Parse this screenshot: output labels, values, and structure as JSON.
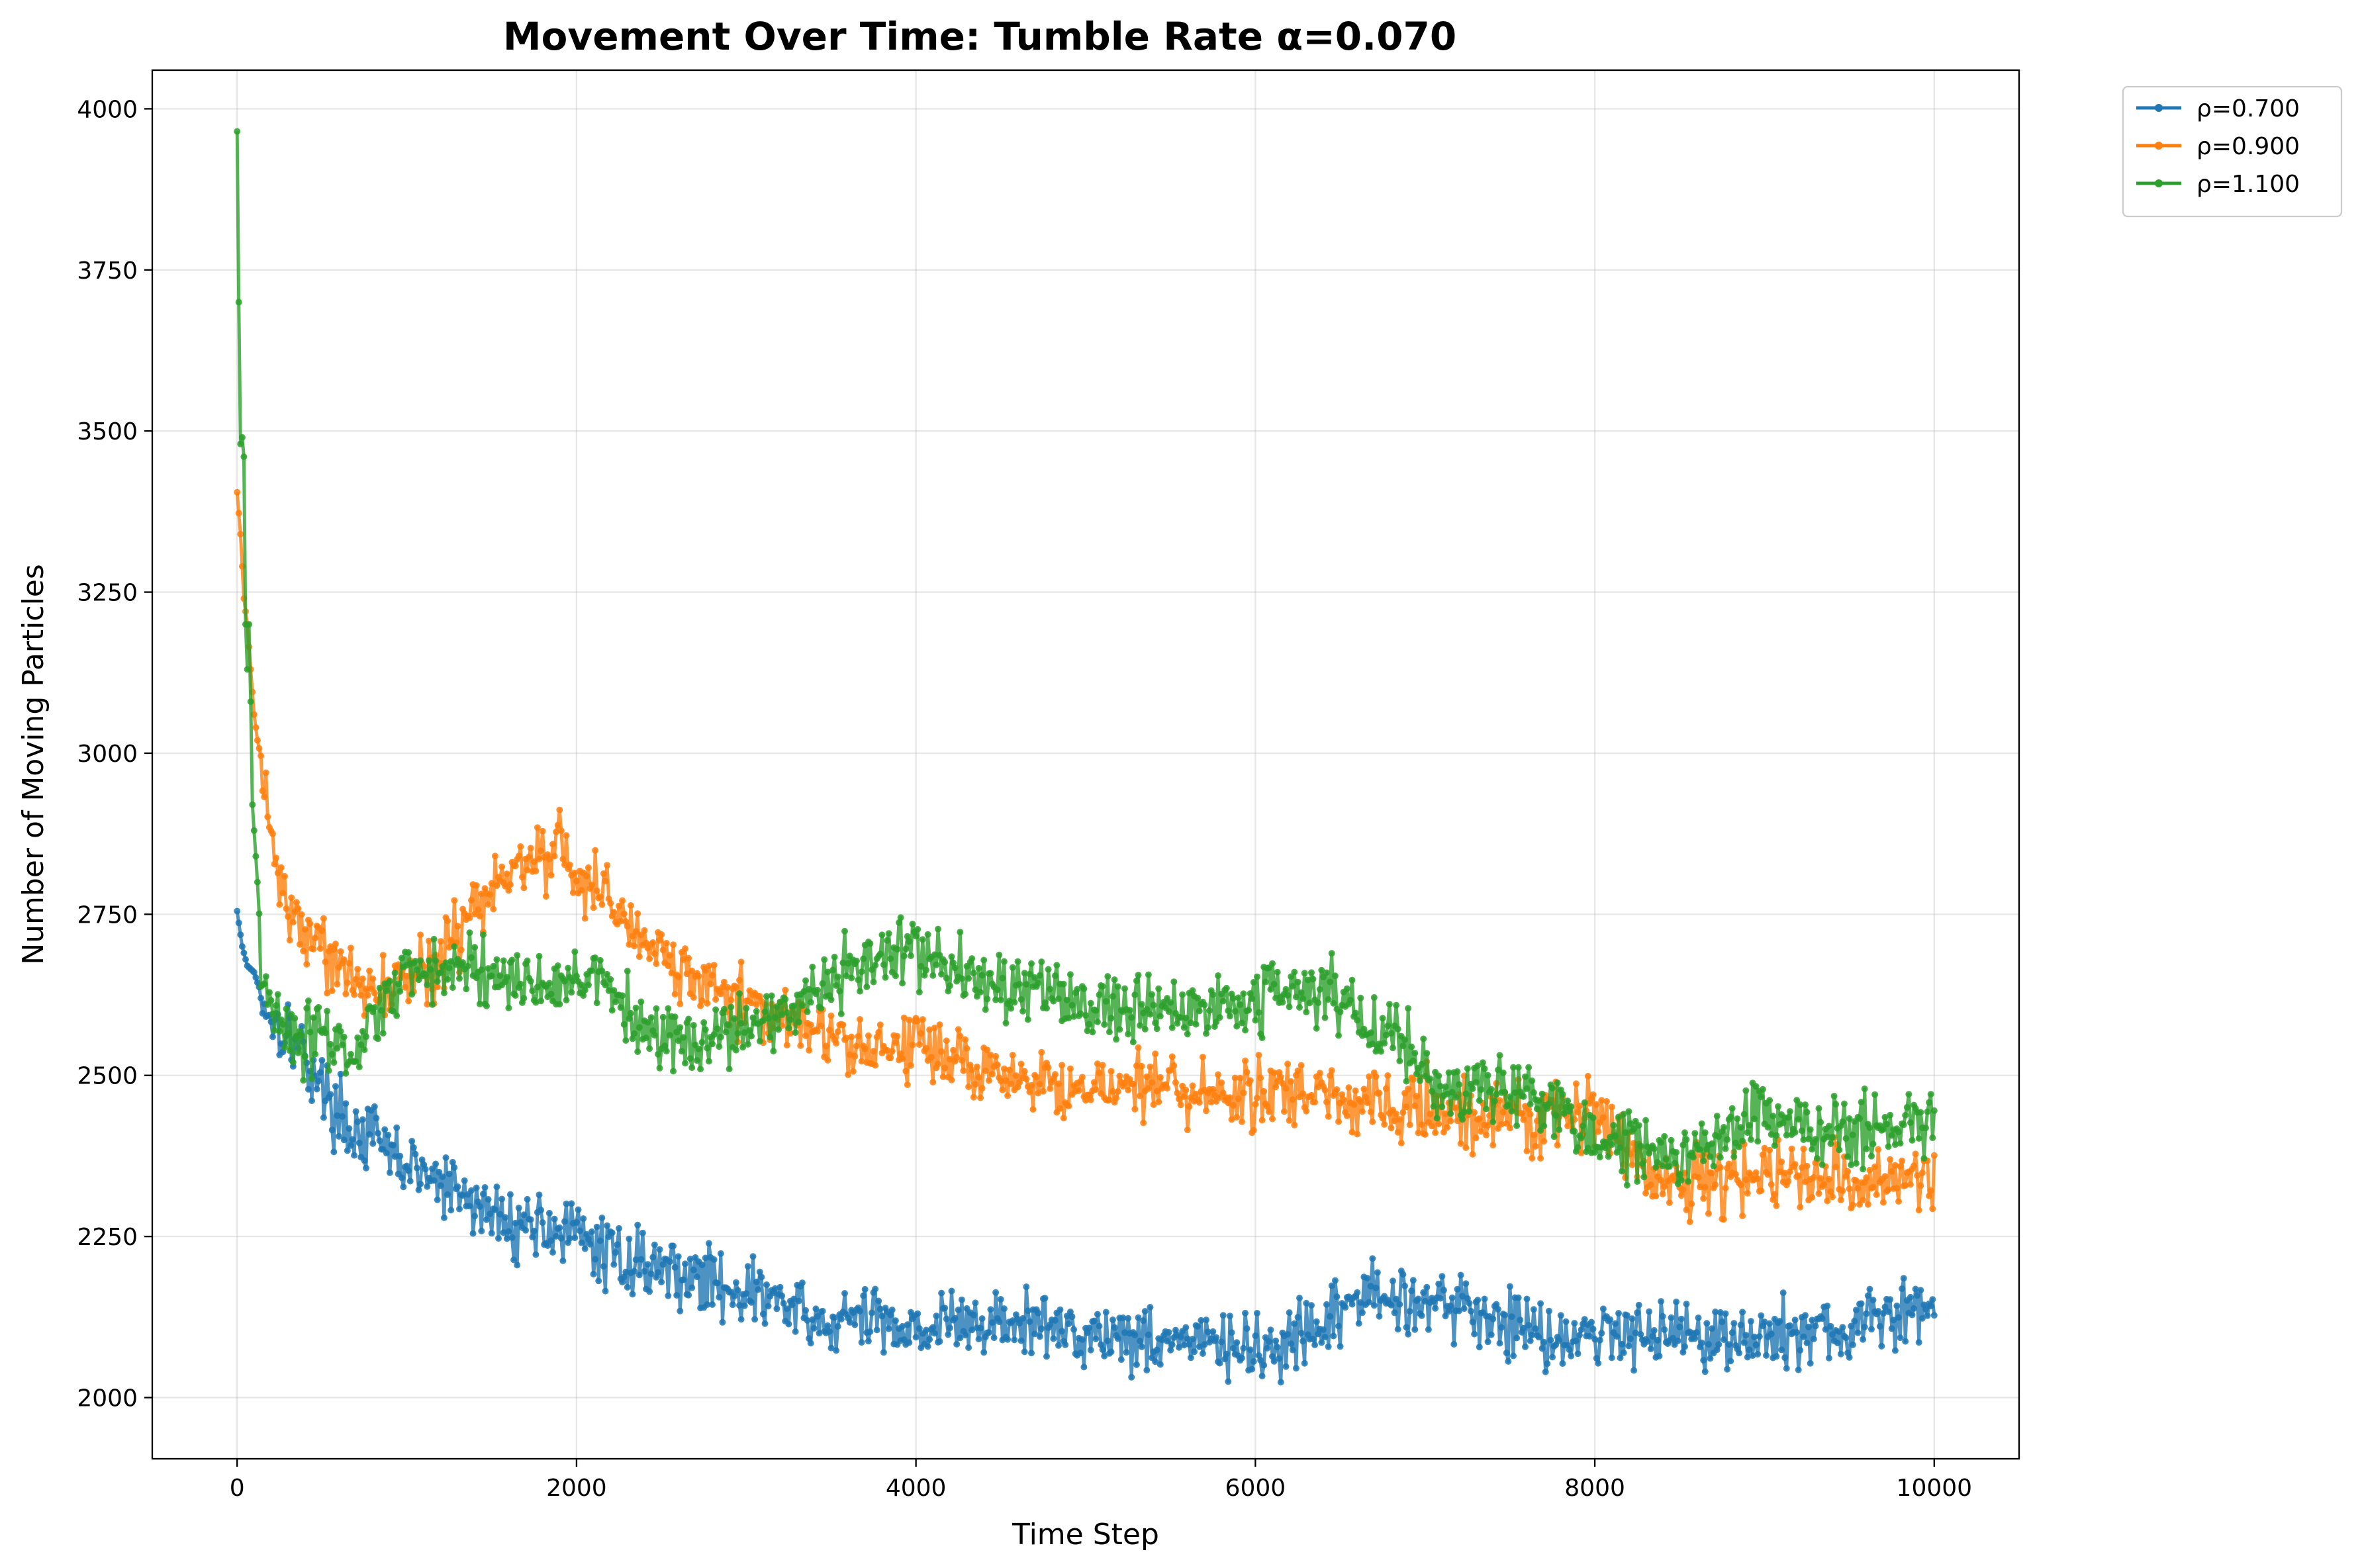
{
  "chart_data": {
    "type": "line",
    "title": "Movement Over Time: Tumble Rate α=0.070",
    "xlabel": "Time Step",
    "ylabel": "Number of Moving Particles",
    "xlim": [
      -500,
      10500
    ],
    "ylim": [
      1905,
      4060
    ],
    "xticks": [
      0,
      2000,
      4000,
      6000,
      8000,
      10000
    ],
    "xtick_labels": [
      "0",
      "2000",
      "4000",
      "6000",
      "8000",
      "10000"
    ],
    "yticks": [
      2000,
      2250,
      2500,
      2750,
      3000,
      3250,
      3500,
      3750,
      4000
    ],
    "ytick_labels": [
      "2000",
      "2250",
      "2500",
      "2750",
      "3000",
      "3250",
      "3500",
      "3750",
      "4000"
    ],
    "grid": true,
    "legend_position": "outside-top-right",
    "sampling_interval": 10,
    "series": [
      {
        "name": "ρ=0.700",
        "color": "#1f77b4",
        "noise_amplitude": 45,
        "x": [
          0,
          30,
          60,
          100,
          150,
          200,
          300,
          400,
          500,
          600,
          700,
          800,
          900,
          1000,
          1200,
          1400,
          1600,
          1800,
          2000,
          2200,
          2400,
          2600,
          2800,
          3000,
          3200,
          3400,
          3600,
          3800,
          4000,
          4400,
          4800,
          5200,
          5600,
          6000,
          6200,
          6400,
          6600,
          6800,
          7000,
          7300,
          7600,
          7800,
          8000,
          8300,
          8600,
          8900,
          9200,
          9500,
          9800,
          10000
        ],
        "y": [
          2755,
          2700,
          2670,
          2660,
          2620,
          2590,
          2570,
          2530,
          2480,
          2440,
          2410,
          2400,
          2380,
          2360,
          2330,
          2300,
          2270,
          2270,
          2250,
          2220,
          2210,
          2195,
          2180,
          2165,
          2150,
          2110,
          2120,
          2120,
          2110,
          2115,
          2110,
          2095,
          2090,
          2070,
          2080,
          2100,
          2160,
          2150,
          2160,
          2130,
          2110,
          2095,
          2095,
          2110,
          2100,
          2090,
          2100,
          2105,
          2130,
          2140
        ]
      },
      {
        "name": "ρ=0.900",
        "color": "#ff7f0e",
        "noise_amplitude": 45,
        "x": [
          0,
          20,
          40,
          60,
          80,
          100,
          130,
          160,
          200,
          250,
          300,
          400,
          500,
          600,
          700,
          800,
          900,
          1000,
          1200,
          1400,
          1600,
          1800,
          1900,
          2000,
          2200,
          2400,
          2600,
          2800,
          3000,
          3200,
          3400,
          3600,
          3800,
          4000,
          4200,
          4400,
          4600,
          5000,
          5400,
          5800,
          6200,
          6600,
          7000,
          7400,
          7800,
          8000,
          8200,
          8400,
          8700,
          9000,
          9300,
          9600,
          9800,
          10000
        ],
        "y": [
          3405,
          3340,
          3240,
          3200,
          3130,
          3060,
          3000,
          2930,
          2880,
          2800,
          2760,
          2720,
          2690,
          2670,
          2660,
          2650,
          2640,
          2640,
          2690,
          2760,
          2800,
          2840,
          2860,
          2810,
          2760,
          2710,
          2660,
          2640,
          2610,
          2590,
          2560,
          2550,
          2545,
          2540,
          2530,
          2510,
          2495,
          2485,
          2480,
          2470,
          2470,
          2460,
          2450,
          2440,
          2430,
          2440,
          2380,
          2330,
          2340,
          2350,
          2340,
          2330,
          2350,
          2350
        ]
      },
      {
        "name": "ρ=1.100",
        "color": "#2ca02c",
        "noise_amplitude": 45,
        "x": [
          0,
          10,
          20,
          30,
          40,
          50,
          60,
          70,
          80,
          90,
          100,
          120,
          140,
          170,
          200,
          250,
          300,
          350,
          400,
          500,
          600,
          700,
          800,
          900,
          1000,
          1200,
          1400,
          1600,
          1800,
          2000,
          2200,
          2400,
          2600,
          2800,
          3000,
          3200,
          3400,
          3600,
          3800,
          4000,
          4200,
          4400,
          4600,
          4800,
          5000,
          5200,
          5400,
          5600,
          5800,
          6000,
          6200,
          6400,
          6600,
          6800,
          7000,
          7200,
          7400,
          7600,
          7800,
          8000,
          8200,
          8400,
          8600,
          8800,
          9000,
          9200,
          9400,
          9600,
          9800,
          10000
        ],
        "y": [
          3965,
          3700,
          3480,
          3490,
          3460,
          3200,
          3130,
          3200,
          3080,
          2920,
          2880,
          2800,
          2640,
          2600,
          2600,
          2580,
          2570,
          2560,
          2560,
          2560,
          2540,
          2520,
          2580,
          2630,
          2650,
          2660,
          2660,
          2650,
          2650,
          2650,
          2630,
          2580,
          2560,
          2570,
          2570,
          2590,
          2630,
          2660,
          2680,
          2700,
          2670,
          2640,
          2640,
          2640,
          2610,
          2590,
          2620,
          2600,
          2620,
          2610,
          2640,
          2630,
          2600,
          2560,
          2500,
          2480,
          2470,
          2470,
          2450,
          2400,
          2390,
          2370,
          2380,
          2410,
          2440,
          2420,
          2420,
          2410,
          2420,
          2440
        ]
      }
    ]
  }
}
